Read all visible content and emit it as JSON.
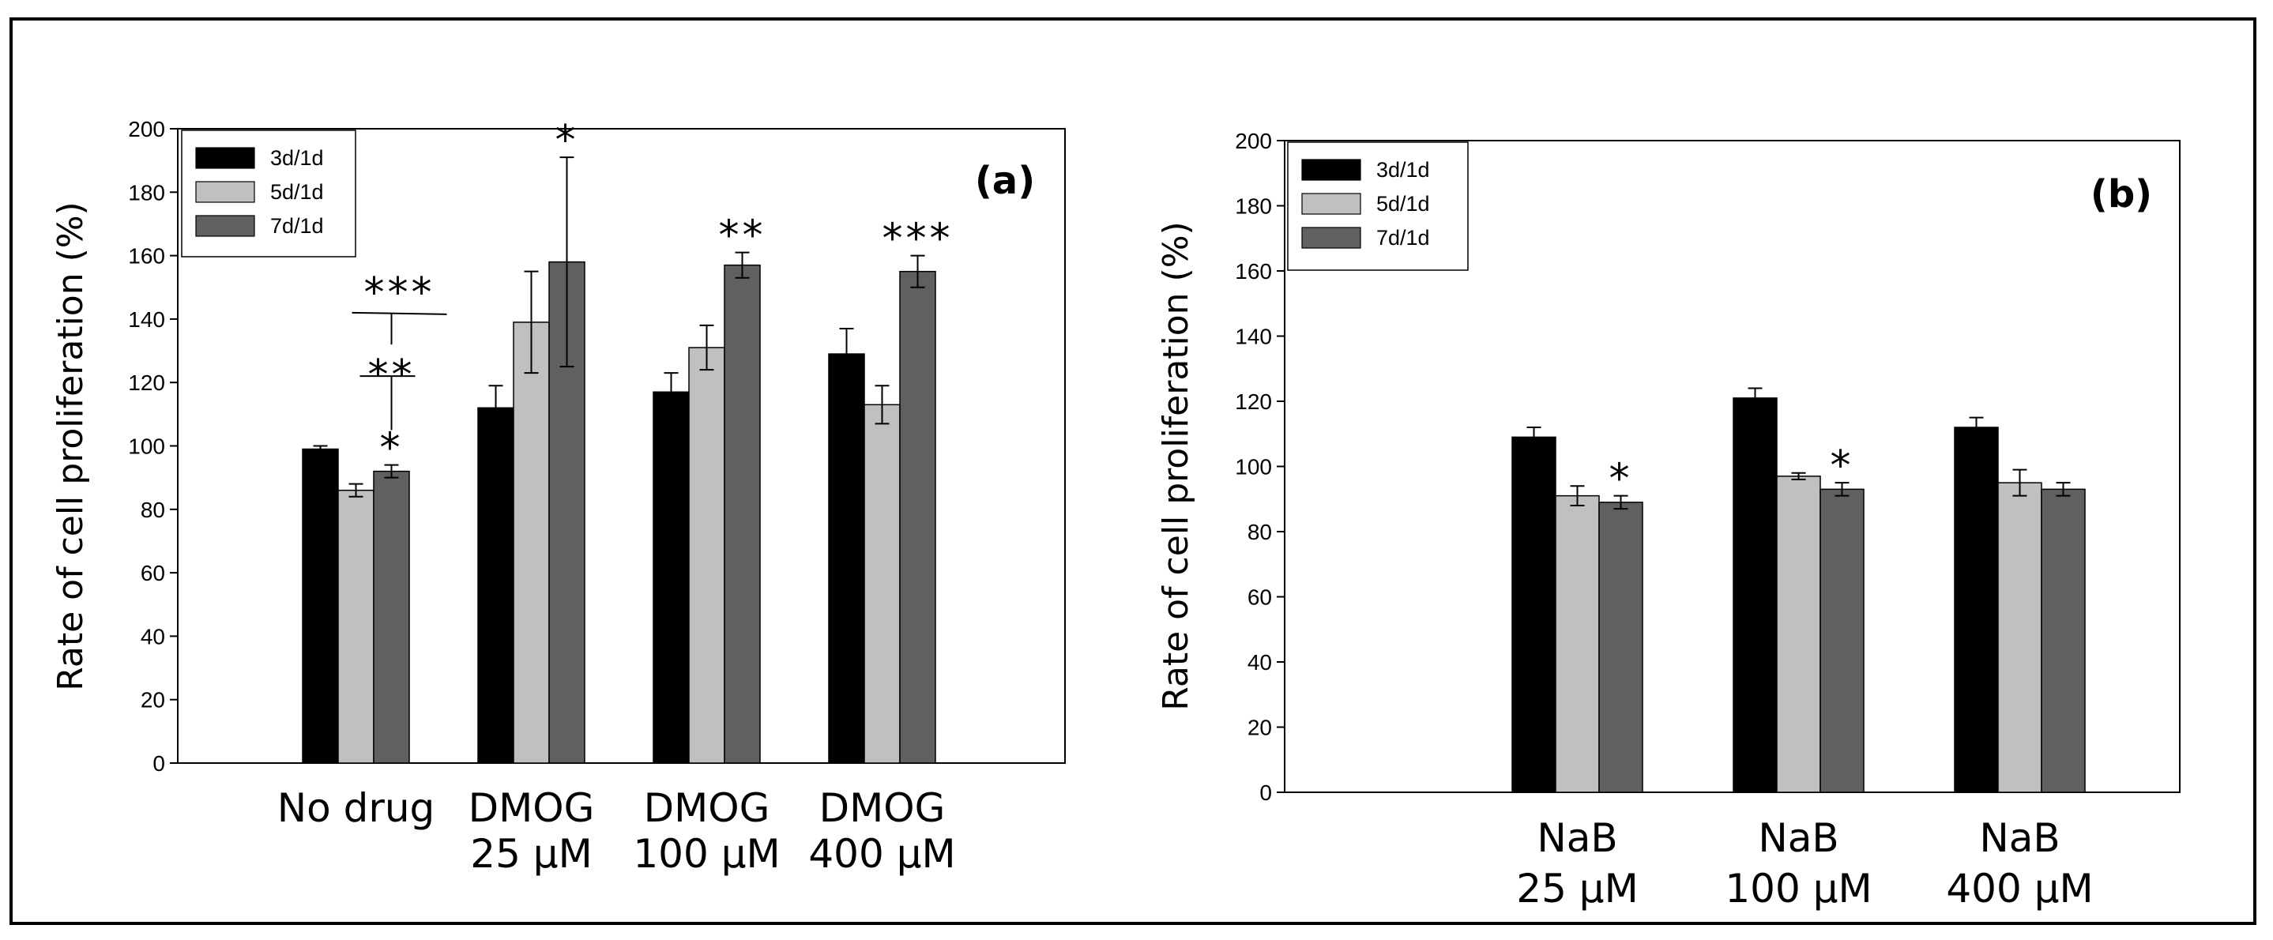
{
  "chart_data": [
    {
      "type": "bar",
      "panel_label": "(a)",
      "ylabel": "Rate of cell proliferation (%)",
      "xlabel": "",
      "ylim": [
        0,
        200
      ],
      "yticks": [
        "0",
        "20",
        "40",
        "60",
        "80",
        "100",
        "120",
        "140",
        "160",
        "180",
        "200"
      ],
      "categories": [
        [
          "No drug"
        ],
        [
          "DMOG",
          "25 µM"
        ],
        [
          "DMOG",
          "100 µM"
        ],
        [
          "DMOG",
          "400 µM"
        ]
      ],
      "legend_position": "top-left",
      "series": [
        {
          "name": "3d/1d",
          "color": "#000000",
          "values": [
            99,
            112,
            117,
            129
          ],
          "errors": [
            1,
            7,
            6,
            8
          ]
        },
        {
          "name": "5d/1d",
          "color": "#c0c0c0",
          "values": [
            86,
            139,
            131,
            113
          ],
          "errors": [
            2,
            16,
            7,
            6
          ]
        },
        {
          "name": "7d/1d",
          "color": "#606060",
          "values": [
            92,
            158,
            157,
            155
          ],
          "errors": [
            2,
            33,
            4,
            5
          ]
        }
      ],
      "significance": [
        {
          "category": 0,
          "series": 2,
          "text": "*"
        },
        {
          "category": 1,
          "series": 2,
          "text": "*"
        },
        {
          "category": 2,
          "series": 2,
          "text": "**"
        },
        {
          "category": 3,
          "series": 2,
          "text": "***"
        }
      ],
      "brackets": [
        {
          "text": "***",
          "level": 142
        },
        {
          "text": "**",
          "level": 122
        }
      ]
    },
    {
      "type": "bar",
      "panel_label": "(b)",
      "ylabel": "Rate of cell proliferation (%)",
      "xlabel": "",
      "ylim": [
        0,
        200
      ],
      "yticks": [
        "0",
        "20",
        "40",
        "60",
        "80",
        "100",
        "120",
        "140",
        "160",
        "180",
        "200"
      ],
      "categories": [
        [
          "NaB",
          "25 µM"
        ],
        [
          "NaB",
          "100 µM"
        ],
        [
          "NaB",
          "400 µM"
        ]
      ],
      "legend_position": "top-left",
      "series": [
        {
          "name": "3d/1d",
          "color": "#000000",
          "values": [
            109,
            121,
            112
          ],
          "errors": [
            3,
            3,
            3
          ]
        },
        {
          "name": "5d/1d",
          "color": "#c0c0c0",
          "values": [
            91,
            97,
            95
          ],
          "errors": [
            3,
            1,
            4
          ]
        },
        {
          "name": "7d/1d",
          "color": "#606060",
          "values": [
            89,
            93,
            93
          ],
          "errors": [
            2,
            2,
            2
          ]
        }
      ],
      "significance": [
        {
          "category": 0,
          "series": 2,
          "text": "*"
        },
        {
          "category": 1,
          "series": 2,
          "text": "*"
        }
      ],
      "brackets": []
    }
  ]
}
